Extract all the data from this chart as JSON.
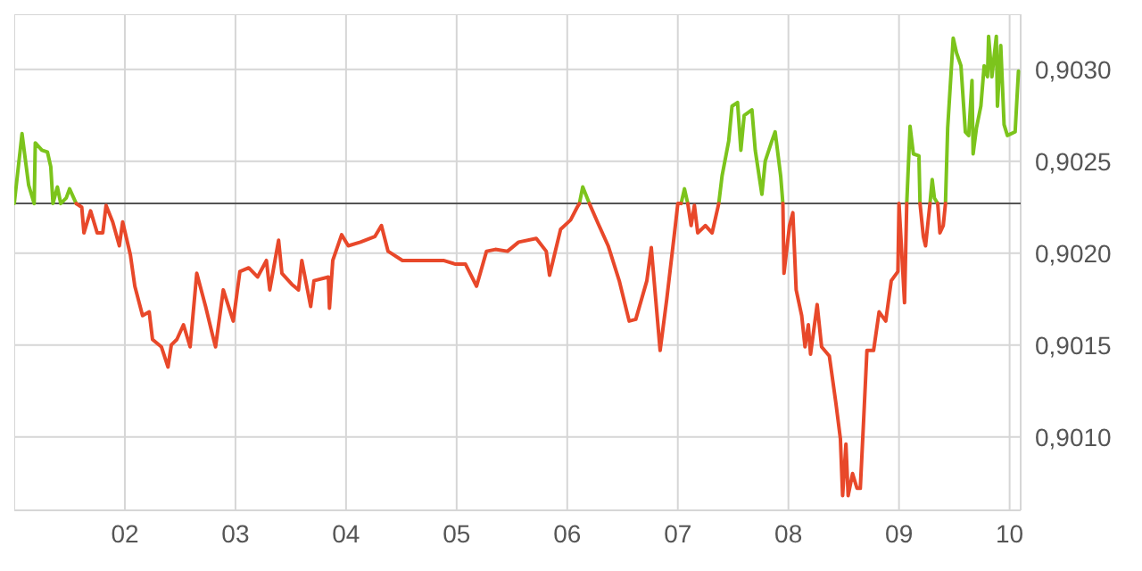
{
  "chart_data": {
    "type": "line",
    "xlim": [
      1,
      10.1
    ],
    "ylim": [
      0.9006,
      0.9033
    ],
    "xticks": [
      {
        "value": 2,
        "label": "02"
      },
      {
        "value": 3,
        "label": "03"
      },
      {
        "value": 4,
        "label": "04"
      },
      {
        "value": 5,
        "label": "05"
      },
      {
        "value": 6,
        "label": "06"
      },
      {
        "value": 7,
        "label": "07"
      },
      {
        "value": 8,
        "label": "08"
      },
      {
        "value": 9,
        "label": "09"
      },
      {
        "value": 10,
        "label": "10"
      }
    ],
    "yticks": [
      {
        "value": 0.901,
        "label": "0,9010"
      },
      {
        "value": 0.9015,
        "label": "0,9015"
      },
      {
        "value": 0.902,
        "label": "0,9020"
      },
      {
        "value": 0.9025,
        "label": "0,9025"
      },
      {
        "value": 0.903,
        "label": "0,9030"
      }
    ],
    "grid": true,
    "marker": "none",
    "line_style": "solid",
    "ref_lines": [
      {
        "axis": "y",
        "value": 0.90227,
        "color": "#555555"
      }
    ],
    "series": [
      {
        "color": "#7cc41c",
        "x": [
          1.0,
          1.07,
          1.1,
          1.13,
          1.18,
          1.19,
          1.25,
          1.3,
          1.33,
          1.35,
          1.39,
          1.42,
          1.47,
          1.5,
          1.56,
          null,
          6.11,
          6.14,
          6.2,
          null,
          7.03,
          7.06,
          7.09,
          null,
          7.37,
          7.4,
          7.46,
          7.49,
          7.54,
          7.57,
          7.6,
          7.67,
          7.7,
          7.76,
          7.79,
          7.85,
          7.88,
          7.93,
          7.95,
          null,
          9.07,
          9.1,
          9.13,
          9.18,
          9.19,
          null,
          9.28,
          9.3,
          9.32,
          9.35,
          null,
          9.42,
          9.44,
          9.49,
          9.52,
          9.56,
          9.6,
          9.63,
          9.66,
          9.67,
          9.7,
          9.74,
          9.77,
          9.8,
          9.81,
          9.84,
          9.88,
          9.89,
          9.92,
          9.95,
          9.98,
          10.05,
          10.08
        ],
        "values": [
          0.90227,
          0.90265,
          0.90251,
          0.90237,
          0.90227,
          0.9026,
          0.90256,
          0.90255,
          0.90247,
          0.90227,
          0.90236,
          0.90227,
          0.9023,
          0.90235,
          0.90227,
          null,
          0.90227,
          0.90236,
          0.90227,
          null,
          0.90227,
          0.90235,
          0.90227,
          null,
          0.90227,
          0.90242,
          0.90261,
          0.9028,
          0.90282,
          0.90256,
          0.90275,
          0.90278,
          0.90256,
          0.90232,
          0.9025,
          0.90261,
          0.90266,
          0.90242,
          0.90227,
          null,
          0.90227,
          0.90269,
          0.90254,
          0.90253,
          0.90227,
          null,
          0.90227,
          0.9024,
          0.9023,
          0.90227,
          null,
          0.90227,
          0.90268,
          0.90317,
          0.90309,
          0.90302,
          0.90266,
          0.90264,
          0.90294,
          0.90254,
          0.90268,
          0.9028,
          0.90302,
          0.90296,
          0.90318,
          0.90296,
          0.90318,
          0.9028,
          0.90313,
          0.9027,
          0.90264,
          0.90266,
          0.90299
        ]
      },
      {
        "color": "#e8482a",
        "x": [
          1.56,
          1.61,
          1.63,
          1.69,
          1.75,
          1.8,
          1.83,
          1.89,
          1.95,
          1.98,
          2.05,
          2.09,
          2.16,
          2.22,
          2.25,
          2.33,
          2.39,
          2.42,
          2.47,
          2.53,
          2.59,
          2.65,
          2.73,
          2.79,
          2.82,
          2.89,
          2.98,
          3.04,
          3.12,
          3.2,
          3.28,
          3.31,
          3.39,
          3.42,
          3.51,
          3.57,
          3.6,
          3.68,
          3.71,
          3.84,
          3.85,
          3.88,
          3.96,
          4.02,
          4.13,
          4.26,
          4.32,
          4.38,
          4.51,
          4.63,
          4.75,
          4.88,
          4.99,
          5.08,
          5.18,
          5.27,
          5.35,
          5.46,
          5.56,
          5.72,
          5.81,
          5.84,
          5.94,
          6.03,
          6.09,
          6.11,
          null,
          6.2,
          6.28,
          6.37,
          6.47,
          6.56,
          6.62,
          6.72,
          6.76,
          6.84,
          6.9,
          6.97,
          7.0,
          7.03,
          null,
          7.09,
          7.12,
          7.15,
          7.18,
          7.25,
          7.31,
          7.37,
          null,
          7.95,
          7.96,
          8.01,
          8.04,
          8.07,
          8.12,
          8.15,
          8.18,
          8.2,
          8.26,
          8.3,
          8.37,
          8.43,
          8.47,
          8.49,
          8.52,
          8.54,
          8.58,
          8.62,
          8.65,
          8.68,
          8.71,
          8.77,
          8.82,
          8.88,
          8.93,
          8.99,
          9.0,
          9.05,
          9.07,
          null,
          9.19,
          9.22,
          9.24,
          9.28,
          null,
          9.35,
          9.37,
          9.4,
          9.42
        ],
        "values": [
          0.90227,
          0.90225,
          0.90211,
          0.90223,
          0.90211,
          0.90211,
          0.90226,
          0.90217,
          0.90204,
          0.90217,
          0.90199,
          0.90182,
          0.90166,
          0.90168,
          0.90153,
          0.90149,
          0.90138,
          0.9015,
          0.90153,
          0.90161,
          0.90149,
          0.90189,
          0.90171,
          0.90156,
          0.90149,
          0.9018,
          0.90163,
          0.9019,
          0.90192,
          0.90187,
          0.90196,
          0.9018,
          0.90207,
          0.90189,
          0.90183,
          0.9018,
          0.90196,
          0.90171,
          0.90185,
          0.90187,
          0.9017,
          0.90196,
          0.9021,
          0.90204,
          0.90206,
          0.90209,
          0.90215,
          0.90201,
          0.90196,
          0.90196,
          0.90196,
          0.90196,
          0.90194,
          0.90194,
          0.90182,
          0.90201,
          0.90202,
          0.90201,
          0.90206,
          0.90208,
          0.90201,
          0.90188,
          0.90213,
          0.90218,
          0.90225,
          0.90227,
          null,
          0.90227,
          0.90216,
          0.90204,
          0.90185,
          0.90163,
          0.90164,
          0.90185,
          0.90203,
          0.90147,
          0.90175,
          0.90211,
          0.90227,
          0.90227,
          null,
          0.90227,
          0.90215,
          0.90226,
          0.90211,
          0.90215,
          0.90211,
          0.90227,
          null,
          0.90227,
          0.90189,
          0.90215,
          0.90222,
          0.9018,
          0.90166,
          0.90149,
          0.90161,
          0.90145,
          0.90172,
          0.90149,
          0.90144,
          0.90118,
          0.90099,
          0.90068,
          0.90096,
          0.90068,
          0.9008,
          0.90072,
          0.90072,
          0.90109,
          0.90147,
          0.90147,
          0.90168,
          0.90163,
          0.90185,
          0.9019,
          0.90227,
          0.90173,
          0.90227,
          null,
          0.90227,
          0.90209,
          0.90204,
          0.90227,
          null,
          0.90227,
          0.90211,
          0.90215,
          0.90227
        ]
      }
    ]
  }
}
